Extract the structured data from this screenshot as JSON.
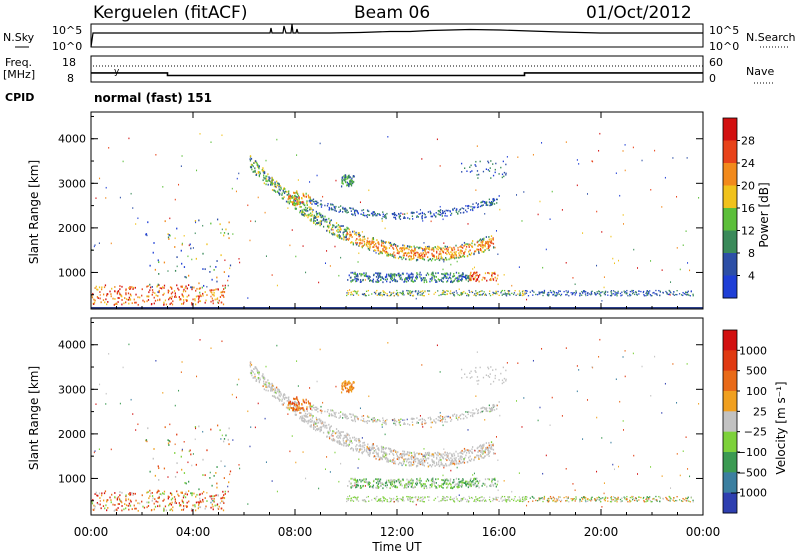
{
  "header": {
    "station": "Kerguelen (fitACF)",
    "beam": "Beam 06",
    "date": "01/Oct/2012"
  },
  "panels": {
    "nsky": {
      "left_label": "N.Sky",
      "ticks": [
        "10^5",
        "10^0"
      ],
      "right_label": "N.Search",
      "right_ticks": [
        "10^5",
        "10^0"
      ]
    },
    "freq": {
      "left_label_1": "Freq.",
      "left_label_2": "[MHz]",
      "ticks": [
        "18",
        "8"
      ],
      "right_label": "Nave",
      "right_ticks": [
        "60",
        "0"
      ]
    },
    "cpid": {
      "label": "CPID",
      "text": "normal (fast) 151"
    }
  },
  "chart_data": [
    {
      "type": "line",
      "name": "Freq.",
      "x": [
        "00:00",
        "03:00",
        "03:00",
        "17:00",
        "17:00",
        "24:00"
      ],
      "values": [
        11.5,
        11.5,
        10.5,
        10.5,
        11.5,
        11.5
      ],
      "ylim": [
        8,
        18
      ]
    },
    {
      "type": "heatmap",
      "title": "",
      "xlabel": "Time UT",
      "ylabel": "Slant Range [km]",
      "x_ticks": [
        "00:00",
        "04:00",
        "08:00",
        "12:00",
        "16:00",
        "20:00",
        "00:00"
      ],
      "y_ticks": [
        "1000",
        "2000",
        "3000",
        "4000"
      ],
      "xlim_hours": [
        0,
        24
      ],
      "ylim_km": [
        180,
        4600
      ],
      "colorbar": {
        "label": "Power [dB]",
        "ticks": [
          "4",
          "8",
          "12",
          "16",
          "20",
          "24",
          "28"
        ],
        "colors": [
          "#1f3fd6",
          "#2d4fa6",
          "#3a8a5a",
          "#5cbf3a",
          "#f0c21c",
          "#f28a1c",
          "#e8431a",
          "#d21010"
        ]
      }
    },
    {
      "type": "heatmap",
      "title": "",
      "xlabel": "Time UT",
      "ylabel": "Slant Range [km]",
      "x_ticks": [
        "00:00",
        "04:00",
        "08:00",
        "12:00",
        "16:00",
        "20:00",
        "00:00"
      ],
      "y_ticks": [
        "1000",
        "2000",
        "3000",
        "4000"
      ],
      "xlim_hours": [
        0,
        24
      ],
      "ylim_km": [
        180,
        4600
      ],
      "colorbar": {
        "label": "Velocity [m s⁻¹]",
        "ticks": [
          "1000",
          "500",
          "100",
          "25",
          "−25",
          "−100",
          "−500",
          "−1000"
        ],
        "colors": [
          "#2e3fb0",
          "#3b7fa0",
          "#3b9a52",
          "#7dd13a",
          "#c2c2c2",
          "#f0a020",
          "#e86a18",
          "#e03a12",
          "#d21010"
        ]
      }
    }
  ]
}
